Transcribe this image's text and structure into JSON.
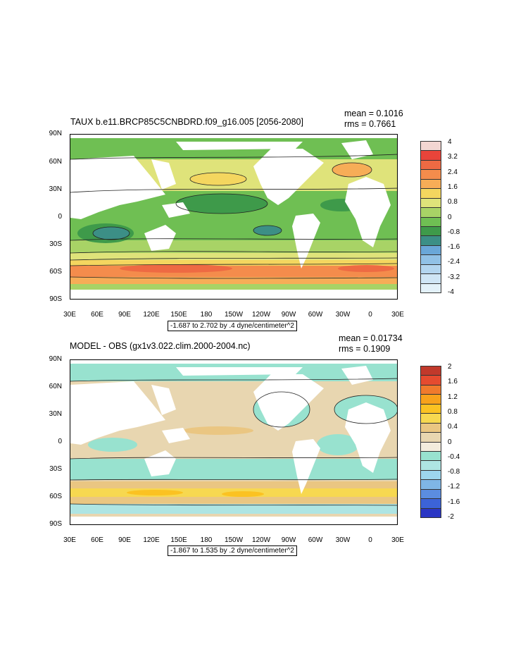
{
  "panels": [
    {
      "title": "TAUX b.e11.BRCP85C5CNBDRD.f09_g16.005 [2056-2080]",
      "mean": "mean = 0.1016",
      "rms": "rms = 0.7661",
      "range_note": "-1.687 to 2.702 by .4 dyne/centimeter^2",
      "lat_labels": [
        "90N",
        "60N",
        "30N",
        "0",
        "30S",
        "60S",
        "90S"
      ],
      "lon_labels": [
        "30E",
        "60E",
        "90E",
        "120E",
        "150E",
        "180",
        "150W",
        "120W",
        "90W",
        "60W",
        "30W",
        "0",
        "30E"
      ],
      "colorbar_labels": [
        "4",
        "3.2",
        "2.4",
        "1.6",
        "0.8",
        "0",
        "-0.8",
        "-1.6",
        "-2.4",
        "-3.2",
        "-4"
      ],
      "colorbar_colors": [
        "#f3d6d2",
        "#e8443a",
        "#ee6a43",
        "#f48c4c",
        "#f7ad57",
        "#f4d65f",
        "#dfe37a",
        "#a8d366",
        "#6fbf53",
        "#3e9a4a",
        "#3c8f86",
        "#6aa7d8",
        "#91c1e6",
        "#b3d5ef",
        "#cfe5f5",
        "#e3f1f9"
      ]
    },
    {
      "title": "MODEL - OBS (gx1v3.022.clim.2000-2004.nc)",
      "mean": "mean = 0.01734",
      "rms": "rms = 0.1909",
      "range_note": "-1.867 to 1.535 by .2 dyne/centimeter^2",
      "lat_labels": [
        "90N",
        "60N",
        "30N",
        "0",
        "30S",
        "60S",
        "90S"
      ],
      "lon_labels": [
        "30E",
        "60E",
        "90E",
        "120E",
        "150E",
        "180",
        "150W",
        "120W",
        "90W",
        "60W",
        "30W",
        "0",
        "30E"
      ],
      "colorbar_labels": [
        "2",
        "1.6",
        "1.2",
        "0.8",
        "0.4",
        "0",
        "-0.4",
        "-0.8",
        "-1.2",
        "-1.6",
        "-2"
      ],
      "colorbar_colors": [
        "#c1392b",
        "#e54b2f",
        "#f07a2c",
        "#f8a21b",
        "#fbc222",
        "#f7d850",
        "#eac682",
        "#e8d6b0",
        "#f3ecdd",
        "#98e2cf",
        "#aee5e3",
        "#9dd6ee",
        "#7fb6e6",
        "#5b8de0",
        "#3c63d8",
        "#2a36c4"
      ]
    }
  ]
}
